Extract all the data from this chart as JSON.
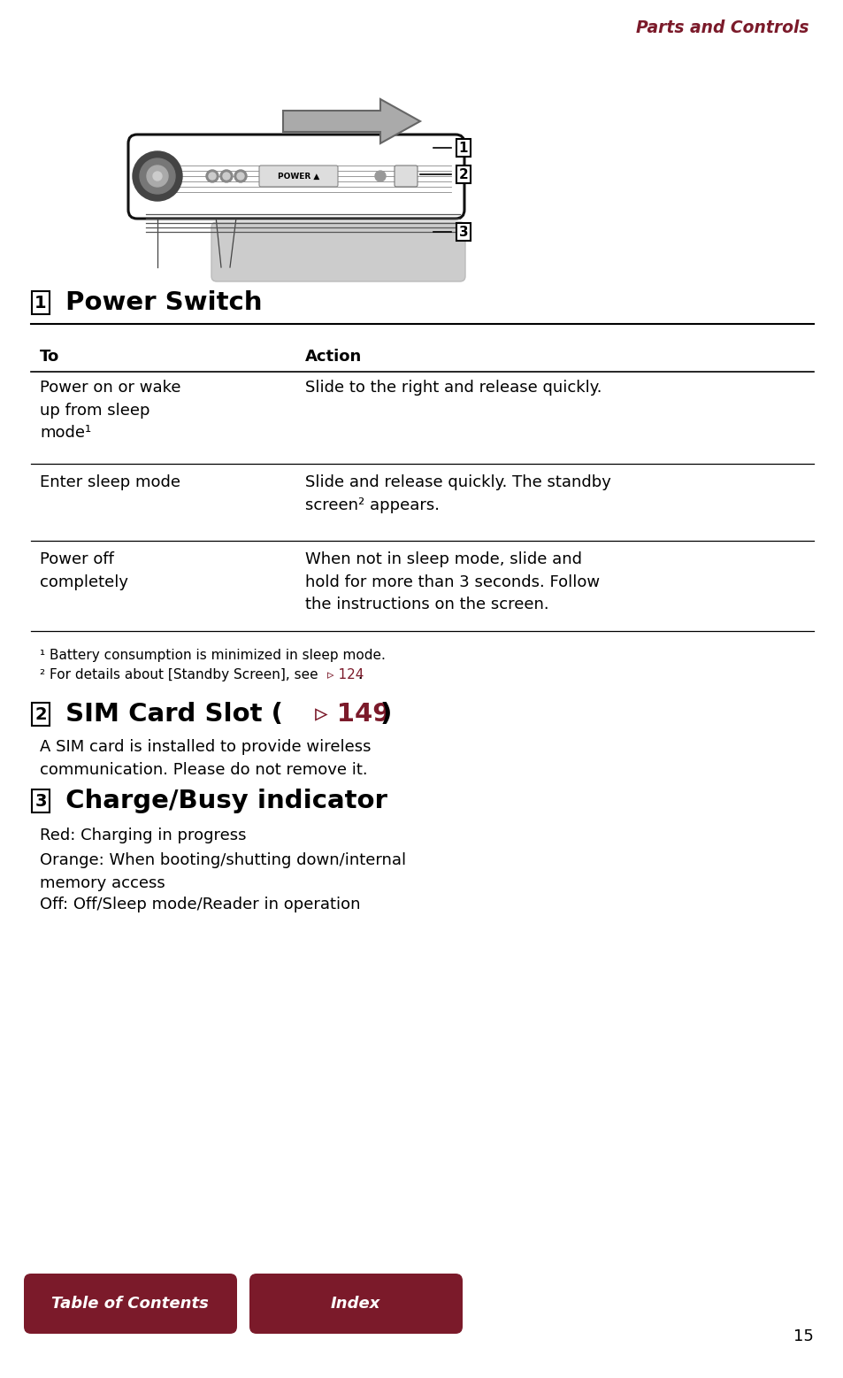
{
  "bg_color": "#ffffff",
  "header_text": "Parts and Controls",
  "dark_red": "#7b1a2a",
  "section1_title": " Power Switch",
  "table_headers": [
    "To",
    "Action"
  ],
  "table_rows": [
    [
      "Power on or wake\nup from sleep\nmode¹",
      "Slide to the right and release quickly."
    ],
    [
      "Enter sleep mode",
      "Slide and release quickly. The standby\nscreen² appears."
    ],
    [
      "Power off\ncompletely",
      "When not in sleep mode, slide and\nhold for more than 3 seconds. Follow\nthe instructions on the screen."
    ]
  ],
  "footnote1": "¹ Battery consumption is minimized in sleep mode.",
  "footnote2_black": "² For details about [Standby Screen], see ",
  "footnote2_red": "▹ 124",
  "footnote2_end": ".",
  "section2_title_black": " SIM Card Slot (",
  "section2_title_red": "▹ 149",
  "section2_title_end": ")",
  "section2_body": "A SIM card is installed to provide wireless\ncommunication. Please do not remove it.",
  "section3_title": " Charge/Busy indicator",
  "section3_lines": [
    "Red: Charging in progress",
    "Orange: When booting/shutting down/internal\nmemory access",
    "Off: Off/Sleep mode/Reader in operation"
  ],
  "btn1_text": "Table of Contents",
  "btn2_text": "Index",
  "btn_color": "#7b1a2a",
  "btn_text_color": "#ffffff",
  "page_number": "15"
}
